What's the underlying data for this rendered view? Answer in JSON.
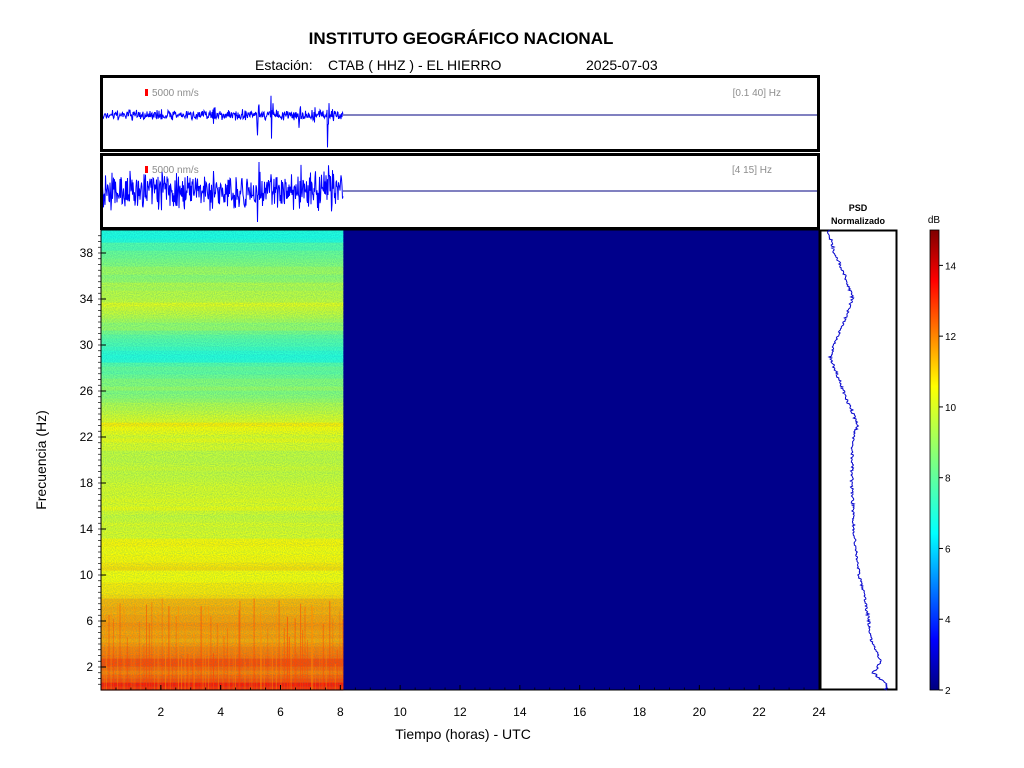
{
  "header": {
    "title": "INSTITUTO GEOGRÁFICO NACIONAL",
    "station_label": "Estación:",
    "station": "CTAB ( HHZ ) - EL HIERRO",
    "date": "2025-07-03"
  },
  "chart_data": [
    {
      "type": "line",
      "panel": "seismogram-broadband",
      "scale_label": "5000 nm/s",
      "filter_label": "[0.1 40] Hz",
      "x_range_hours": [
        0,
        24
      ],
      "data_end_hours": 8.1,
      "colors": {
        "trace": "#0000ff",
        "scale_bar": "#ff0000"
      }
    },
    {
      "type": "line",
      "panel": "seismogram-filtered",
      "scale_label": "5000 nm/s",
      "filter_label": "[4 15] Hz",
      "x_range_hours": [
        0,
        24
      ],
      "data_end_hours": 8.1,
      "colors": {
        "trace": "#0000ff",
        "scale_bar": "#ff0000"
      }
    },
    {
      "type": "heatmap",
      "panel": "spectrogram",
      "xlabel": "Tiempo (horas) - UTC",
      "ylabel": "Frecuencia  (Hz)",
      "xlim": [
        0,
        24
      ],
      "ylim": [
        0,
        40
      ],
      "xticks": [
        2,
        4,
        6,
        8,
        10,
        12,
        14,
        16,
        18,
        20,
        22,
        24
      ],
      "yticks": [
        2,
        6,
        10,
        14,
        18,
        22,
        26,
        30,
        34,
        38
      ],
      "data_end_hours": 8.1,
      "frequency_profile_db": [
        {
          "hz": 0.5,
          "db": 12.8
        },
        {
          "hz": 1.5,
          "db": 11.6
        },
        {
          "hz": 2.5,
          "db": 12.4
        },
        {
          "hz": 4,
          "db": 11.5
        },
        {
          "hz": 6,
          "db": 11.2
        },
        {
          "hz": 8,
          "db": 10.8
        },
        {
          "hz": 10,
          "db": 10.3
        },
        {
          "hz": 12,
          "db": 10.0
        },
        {
          "hz": 14,
          "db": 9.8
        },
        {
          "hz": 18,
          "db": 9.6
        },
        {
          "hz": 22,
          "db": 9.7
        },
        {
          "hz": 23,
          "db": 10.2
        },
        {
          "hz": 26,
          "db": 8.8
        },
        {
          "hz": 29,
          "db": 7.6
        },
        {
          "hz": 31,
          "db": 8.4
        },
        {
          "hz": 34,
          "db": 9.7
        },
        {
          "hz": 36,
          "db": 9.0
        },
        {
          "hz": 38,
          "db": 8.0
        },
        {
          "hz": 40,
          "db": 7.4
        }
      ],
      "empty_value_db": 2
    },
    {
      "type": "line",
      "panel": "psd-profile",
      "title": "PSD",
      "subtitle": "Normalizado",
      "colors": {
        "line": "#0000cc"
      }
    },
    {
      "type": "colorbar",
      "label": "dB",
      "range": [
        2,
        15
      ],
      "ticks": [
        2,
        4,
        6,
        8,
        10,
        12,
        14
      ]
    }
  ]
}
